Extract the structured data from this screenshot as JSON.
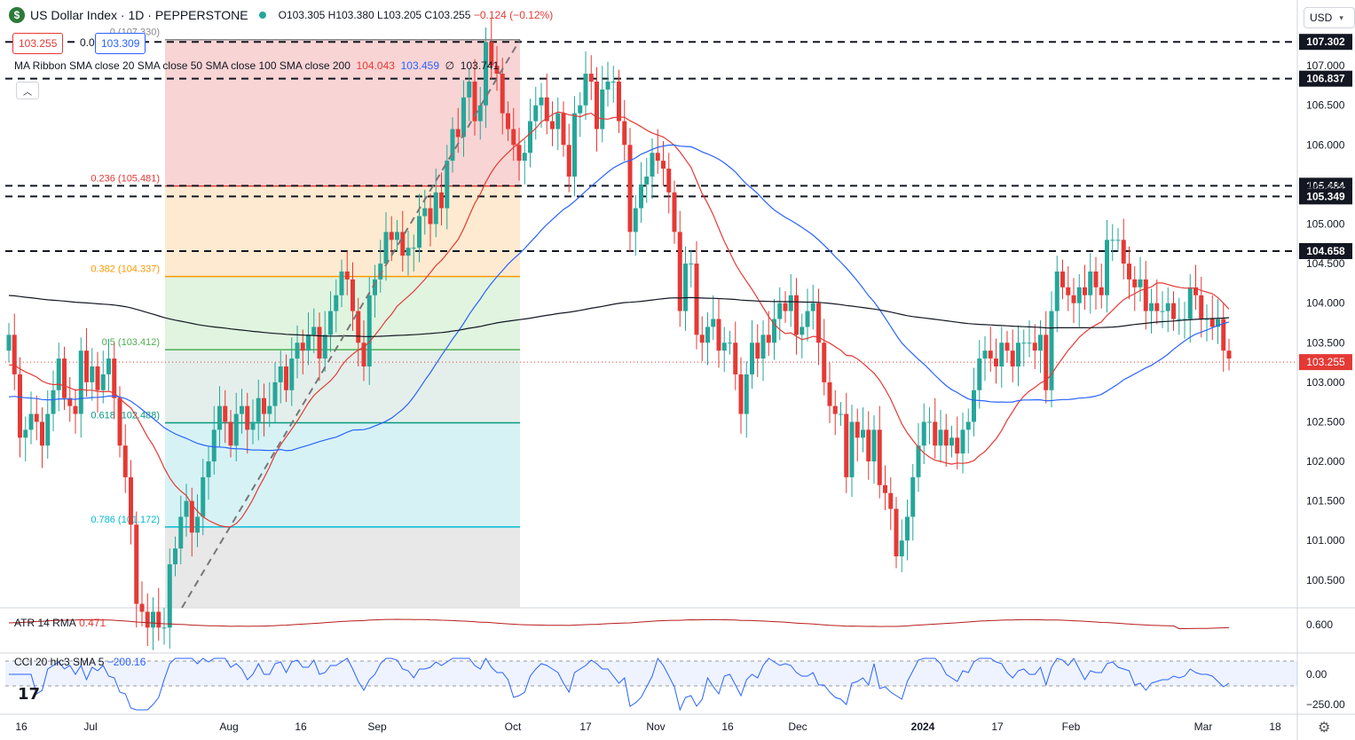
{
  "header": {
    "logo_text": "$",
    "symbol_title": "US Dollar Index · 1D · PEPPERSTONE",
    "ohlc": "O103.305 H103.380 L103.205 C103.255",
    "change": "−0.124 (−0.12%)",
    "bid": "103.255",
    "spread": "0.054",
    "ask": "103.309",
    "currency": "USD"
  },
  "ma_ribbon": {
    "label": "MA Ribbon SMA close 20 SMA close 50 SMA close 100 SMA close 200",
    "v1": "104.043",
    "v2": "103.459",
    "v3": "∅",
    "v4": "103.741",
    "collapse_glyph": "︿"
  },
  "indicators": {
    "atr_label": "ATR 14 RMA",
    "atr_value": "0.471",
    "cci_label": "CCI 20 hlc3 SMA 5",
    "cci_value": "−200.16"
  },
  "colors": {
    "up": "#26a69a",
    "down": "#e53935",
    "sma20": "#e53935",
    "sma50": "#2962ff",
    "sma200": "#131722"
  },
  "icons": {
    "settings": "gear-icon",
    "brand": "tradingview-logo"
  },
  "chart_data": {
    "type": "candlestick",
    "price_axis_ticks": [
      "107.000",
      "106.500",
      "106.000",
      "105.500",
      "105.000",
      "104.500",
      "104.000",
      "103.500",
      "103.000",
      "102.500",
      "102.000",
      "101.500",
      "101.000",
      "100.500"
    ],
    "atr_axis_ticks": [
      "0.600"
    ],
    "cci_axis_ticks": [
      "0.00",
      "−250.00"
    ],
    "date_axis_ticks": [
      "16",
      "Jul",
      "Aug",
      "16",
      "Sep",
      "Oct",
      "17",
      "Nov",
      "16",
      "Dec",
      "2024",
      "17",
      "Feb",
      "Mar",
      "18"
    ],
    "horizontal_levels": [
      {
        "label": "107.302",
        "value": 107.302
      },
      {
        "label": "106.837",
        "value": 106.837
      },
      {
        "label": "105.484",
        "value": 105.484
      },
      {
        "label": "105.349",
        "value": 105.349
      },
      {
        "label": "104.658",
        "value": 104.658
      }
    ],
    "fib_levels": [
      {
        "label": "0 (107.330)",
        "value": 107.33
      },
      {
        "label": "0.236 (105.481)",
        "value": 105.481
      },
      {
        "label": "0.382 (104.337)",
        "value": 104.337
      },
      {
        "label": "0.5 (103.412)",
        "value": 103.412
      },
      {
        "label": "0.618 (102.488)",
        "value": 102.488
      },
      {
        "label": "0.786 (101.172)",
        "value": 101.172
      }
    ],
    "last_price": 103.255,
    "closes": [
      103.6,
      103.1,
      102.3,
      102.4,
      102.6,
      102.5,
      102.2,
      102.6,
      102.9,
      103.3,
      102.8,
      102.7,
      102.6,
      103.4,
      103.0,
      103.2,
      102.9,
      103.1,
      103.3,
      102.8,
      102.2,
      101.8,
      101.2,
      100.2,
      100.1,
      99.9,
      100.1,
      99.9,
      99.9,
      100.7,
      100.9,
      101.3,
      101.5,
      101.1,
      101.3,
      101.8,
      102.0,
      102.4,
      102.7,
      102.5,
      102.2,
      102.6,
      102.7,
      102.4,
      102.5,
      102.8,
      102.6,
      102.7,
      103.0,
      103.2,
      102.9,
      103.3,
      103.5,
      103.4,
      103.6,
      103.7,
      103.3,
      103.6,
      103.9,
      104.1,
      104.4,
      104.3,
      103.9,
      103.5,
      103.2,
      104.1,
      104.3,
      104.5,
      104.9,
      104.8,
      104.9,
      104.6,
      104.7,
      104.7,
      105.1,
      105.2,
      105.0,
      105.4,
      105.2,
      105.8,
      106.2,
      106.1,
      106.6,
      106.8,
      106.3,
      106.5,
      107.3,
      107.0,
      106.9,
      106.4,
      106.2,
      106.0,
      105.8,
      105.9,
      106.3,
      106.5,
      106.6,
      106.3,
      106.2,
      106.4,
      106.0,
      105.6,
      106.4,
      106.5,
      106.9,
      106.8,
      106.2,
      106.7,
      106.8,
      106.8,
      106.3,
      106.0,
      104.9,
      105.2,
      105.5,
      105.6,
      105.9,
      105.8,
      105.7,
      105.4,
      104.9,
      103.9,
      104.5,
      104.5,
      103.6,
      103.5,
      103.7,
      103.8,
      103.4,
      103.5,
      103.5,
      103.1,
      102.6,
      103.1,
      103.5,
      103.3,
      103.6,
      103.5,
      103.8,
      104.0,
      103.9,
      104.1,
      103.6,
      103.7,
      103.9,
      104.0,
      103.5,
      103.0,
      102.7,
      102.6,
      102.6,
      101.8,
      102.5,
      102.3,
      102.4,
      102.0,
      102.4,
      101.7,
      101.6,
      101.4,
      100.8,
      101.0,
      101.3,
      101.8,
      102.2,
      102.5,
      102.5,
      102.2,
      102.4,
      102.2,
      102.3,
      102.1,
      102.4,
      102.5,
      102.9,
      103.3,
      103.4,
      103.3,
      103.2,
      103.5,
      103.4,
      103.2,
      103.5,
      103.5,
      103.5,
      103.4,
      103.6,
      102.9,
      103.9,
      104.4,
      104.2,
      104.1,
      104.0,
      104.2,
      104.1,
      104.4,
      104.2,
      104.1,
      104.8,
      104.8,
      104.8,
      104.5,
      104.3,
      104.2,
      104.3,
      103.9,
      104.0,
      103.9,
      103.9,
      104.0,
      103.8,
      103.8,
      103.8,
      104.2,
      104.1,
      103.8,
      103.8,
      103.7,
      103.8,
      103.4,
      103.3
    ]
  }
}
